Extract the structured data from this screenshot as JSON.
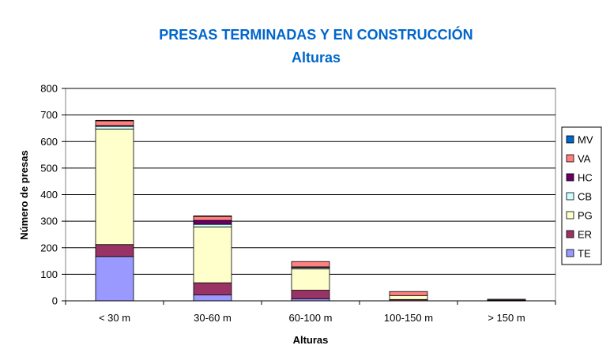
{
  "chart_data": {
    "type": "bar",
    "stacked": true,
    "title": "PRESAS TERMINADAS Y EN CONSTRUCCIÓN",
    "subtitle": "Alturas",
    "xlabel": "Alturas",
    "ylabel": "Número de presas",
    "ylim": [
      0,
      800
    ],
    "yticks": [
      "0",
      "100",
      "200",
      "300",
      "400",
      "500",
      "600",
      "700",
      "800"
    ],
    "grid": true,
    "legend_position": "right",
    "categories": [
      "< 30 m",
      "30-60 m",
      "60-100 m",
      "100-150 m",
      "> 150 m"
    ],
    "series": [
      {
        "name": "TE",
        "color": "#9999ff",
        "values": [
          167,
          22,
          8,
          0,
          0
        ]
      },
      {
        "name": "ER",
        "color": "#993366",
        "values": [
          45,
          46,
          32,
          5,
          1
        ]
      },
      {
        "name": "PG",
        "color": "#ffffcc",
        "values": [
          435,
          210,
          80,
          15,
          2
        ]
      },
      {
        "name": "CB",
        "color": "#ccffff",
        "values": [
          10,
          10,
          5,
          0,
          0
        ]
      },
      {
        "name": "HC",
        "color": "#660066",
        "values": [
          3,
          15,
          3,
          0,
          0
        ]
      },
      {
        "name": "VA",
        "color": "#ff8080",
        "values": [
          18,
          15,
          20,
          15,
          3
        ]
      },
      {
        "name": "MV",
        "color": "#0066cc",
        "values": [
          2,
          2,
          0,
          0,
          0
        ]
      }
    ]
  }
}
